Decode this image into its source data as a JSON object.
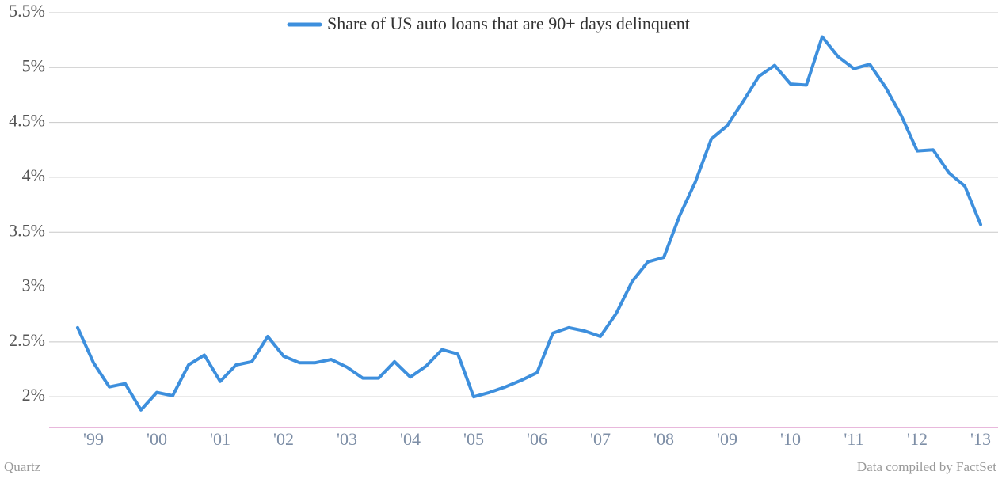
{
  "chart_data": {
    "type": "line",
    "legend": "top",
    "grid": true,
    "credit": "Quartz",
    "source": "Data compiled by FactSet",
    "x": [
      1998.75,
      1999,
      1999.25,
      1999.5,
      1999.75,
      2000,
      2000.25,
      2000.5,
      2000.75,
      2001,
      2001.25,
      2001.5,
      2001.75,
      2002,
      2002.25,
      2002.5,
      2002.75,
      2003,
      2003.25,
      2003.5,
      2003.75,
      2004,
      2004.25,
      2004.5,
      2004.75,
      2005,
      2005.25,
      2005.5,
      2005.75,
      2006,
      2006.25,
      2006.5,
      2006.75,
      2007,
      2007.25,
      2007.5,
      2007.75,
      2008,
      2008.25,
      2008.5,
      2008.75,
      2009,
      2009.25,
      2009.5,
      2009.75,
      2010,
      2010.25,
      2010.5,
      2010.75,
      2011,
      2011.25,
      2011.5,
      2011.75,
      2012,
      2012.25,
      2012.5,
      2012.75,
      2013
    ],
    "series": [
      {
        "name": "Share of US auto loans that are 90+ days delinquent",
        "color": "#3d8fdd",
        "values": [
          2.63,
          2.31,
          2.09,
          2.12,
          1.88,
          2.04,
          2.01,
          2.29,
          2.38,
          2.14,
          2.29,
          2.32,
          2.55,
          2.37,
          2.31,
          2.31,
          2.34,
          2.27,
          2.17,
          2.17,
          2.32,
          2.18,
          2.28,
          2.43,
          2.39,
          2.0,
          2.04,
          2.09,
          2.15,
          2.22,
          2.58,
          2.63,
          2.6,
          2.55,
          2.76,
          3.05,
          3.23,
          3.27,
          3.65,
          3.96,
          4.35,
          4.47,
          4.69,
          4.92,
          5.02,
          4.85,
          4.84,
          5.28,
          5.1,
          4.99,
          5.03,
          4.82,
          4.56,
          4.24,
          4.25,
          4.04,
          3.92,
          3.57
        ]
      }
    ],
    "xlim": [
      1998.3,
      2013.275
    ],
    "xticks": [
      {
        "value": 1999,
        "label": "'99"
      },
      {
        "value": 2000,
        "label": "'00"
      },
      {
        "value": 2001,
        "label": "'01"
      },
      {
        "value": 2002,
        "label": "'02"
      },
      {
        "value": 2003,
        "label": "'03"
      },
      {
        "value": 2004,
        "label": "'04"
      },
      {
        "value": 2005,
        "label": "'05"
      },
      {
        "value": 2006,
        "label": "'06"
      },
      {
        "value": 2007,
        "label": "'07"
      },
      {
        "value": 2008,
        "label": "'08"
      },
      {
        "value": 2009,
        "label": "'09"
      },
      {
        "value": 2010,
        "label": "'10"
      },
      {
        "value": 2011,
        "label": "'11"
      },
      {
        "value": 2012,
        "label": "'12"
      },
      {
        "value": 2013,
        "label": "'13"
      }
    ],
    "ylim": [
      1.72,
      5.5
    ],
    "yticks": [
      {
        "value": 2,
        "label": "2%"
      },
      {
        "value": 2.5,
        "label": "2.5%"
      },
      {
        "value": 3,
        "label": "3%"
      },
      {
        "value": 3.5,
        "label": "3.5%"
      },
      {
        "value": 4,
        "label": "4%"
      },
      {
        "value": 4.5,
        "label": "4.5%"
      },
      {
        "value": 5,
        "label": "5%"
      },
      {
        "value": 5.5,
        "label": "5.5%"
      }
    ]
  }
}
